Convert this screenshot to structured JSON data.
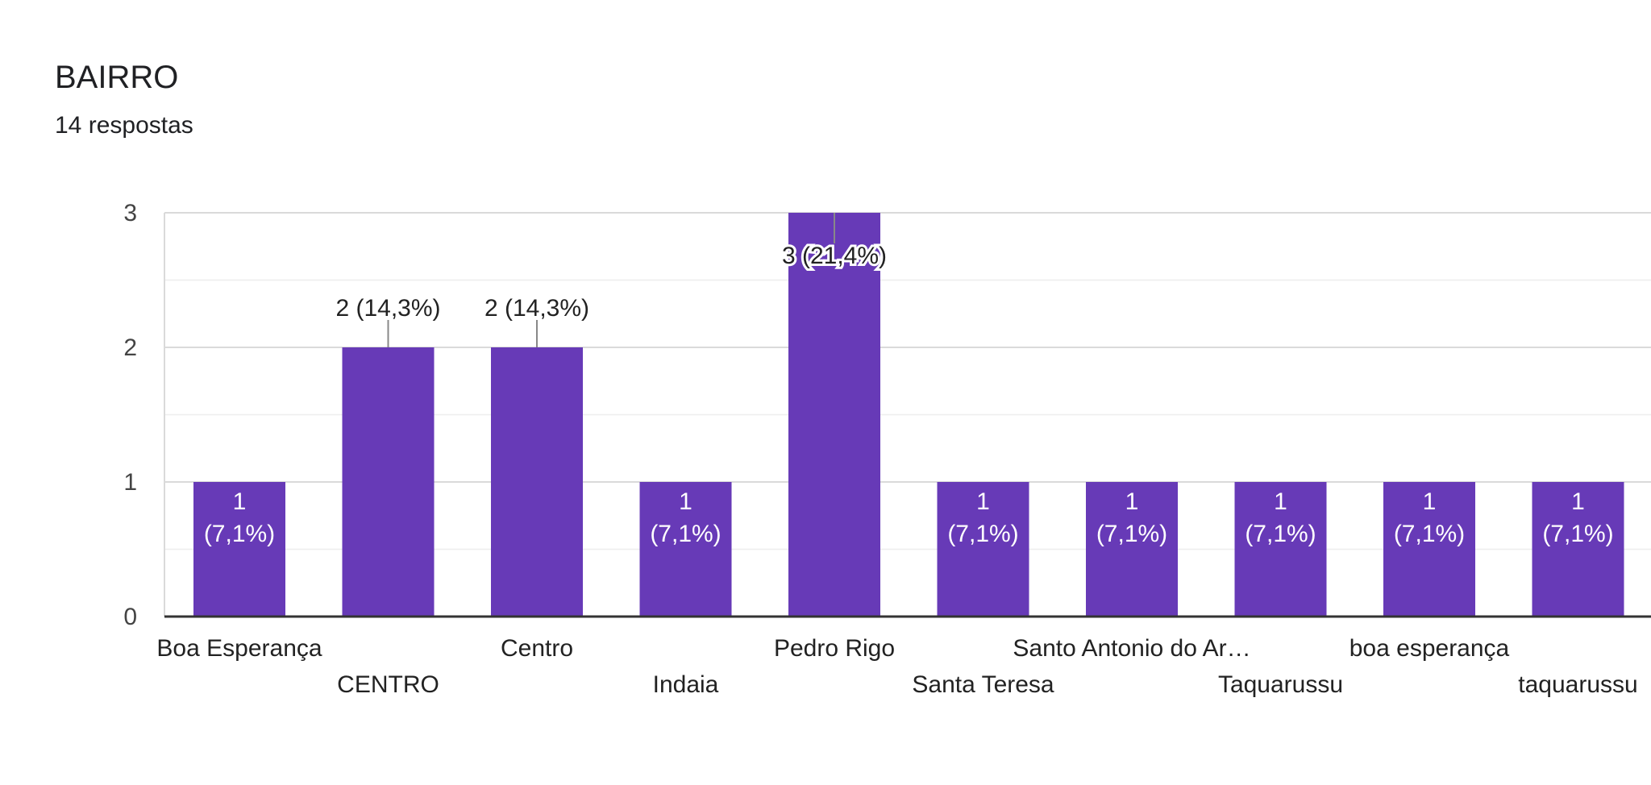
{
  "header": {
    "title": "BAIRRO",
    "subtitle": "14 respostas"
  },
  "colors": {
    "bar": "#673AB7",
    "grid": "#E8E8E8",
    "axis": "#333333"
  },
  "chart_data": {
    "type": "bar",
    "title": "BAIRRO",
    "subtitle": "14 respostas",
    "xlabel": "",
    "ylabel": "",
    "ylim": [
      0,
      3
    ],
    "yticks": [
      "0",
      "1",
      "2",
      "3"
    ],
    "grid": true,
    "legend": "none",
    "categories": [
      "Boa Esperança",
      "CENTRO",
      "Centro",
      "Indaia",
      "Pedro Rigo",
      "Santa Teresa",
      "Santo Antonio do Ar…",
      "Taquarussu",
      "boa esperança",
      "taquarussu"
    ],
    "values": [
      1,
      2,
      2,
      1,
      3,
      1,
      1,
      1,
      1,
      1
    ],
    "data_labels": [
      [
        "1",
        "(7,1%)"
      ],
      [
        "2 (14,3%)"
      ],
      [
        "2 (14,3%)"
      ],
      [
        "1",
        "(7,1%)"
      ],
      [
        "3 (21,4%)"
      ],
      [
        "1",
        "(7,1%)"
      ],
      [
        "1",
        "(7,1%)"
      ],
      [
        "1",
        "(7,1%)"
      ],
      [
        "1",
        "(7,1%)"
      ],
      [
        "1",
        "(7,1%)"
      ]
    ]
  }
}
